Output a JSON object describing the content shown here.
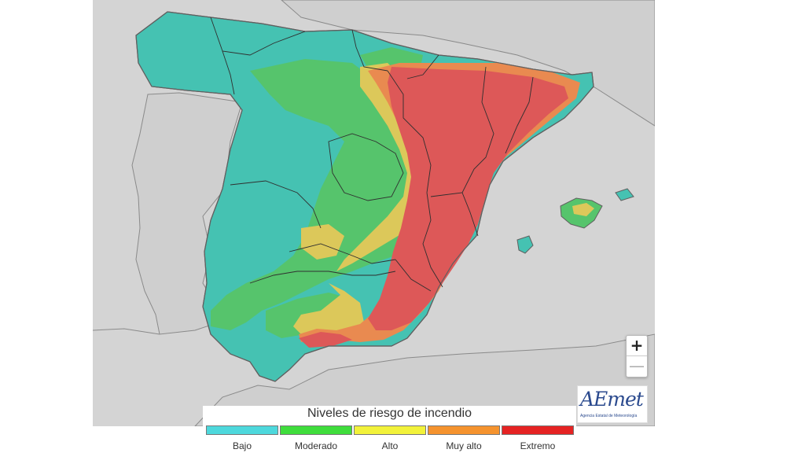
{
  "legend": {
    "title": "Niveles de riesgo de incendio",
    "levels": [
      {
        "label": "Bajo",
        "color": "#4dd8dc"
      },
      {
        "label": "Moderado",
        "color": "#3fdd3c"
      },
      {
        "label": "Alto",
        "color": "#f2f23a"
      },
      {
        "label": "Muy alto",
        "color": "#f5932e"
      },
      {
        "label": "Extremo",
        "color": "#e52323"
      }
    ]
  },
  "map_colors": {
    "sea": "#d4d4d4",
    "land_outside": "#cfcfcf",
    "bajo": "#45c2b2",
    "moderado": "#56c46c",
    "alto": "#dcc85a",
    "muy_alto": "#e98a50",
    "extremo": "#dd5858"
  },
  "logo": {
    "brand": "AEmet",
    "subtitle": "Agencia Estatal de Meteorología"
  },
  "zoom": {
    "in_label": "+",
    "out_label": "—"
  }
}
